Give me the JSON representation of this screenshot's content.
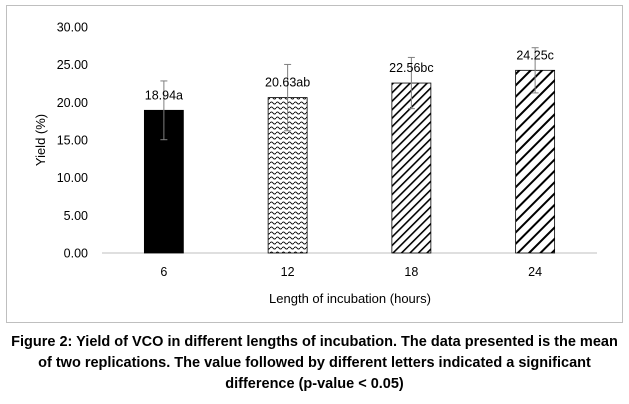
{
  "chart_data": {
    "type": "bar",
    "categories": [
      "6",
      "12",
      "18",
      "24"
    ],
    "values": [
      18.94,
      20.63,
      22.56,
      24.25
    ],
    "error": [
      3.9,
      4.4,
      3.4,
      3.0
    ],
    "data_labels": [
      "18.94a",
      "20.63ab",
      "22.56bc",
      "24.25c"
    ],
    "bar_patterns": [
      "solid",
      "wave",
      "dense-diagonal",
      "wide-diagonal"
    ],
    "xlabel": "Length of incubation (hours)",
    "ylabel": "Yield (%)",
    "ylim": [
      0,
      30
    ],
    "yticks": [
      "0.00",
      "5.00",
      "10.00",
      "15.00",
      "20.00",
      "25.00",
      "30.00"
    ],
    "grid": false,
    "legend": "none"
  },
  "caption": "Figure 2: Yield of VCO in different lengths of incubation. The data presented is the mean of two replications. The value followed by different letters indicated a significant difference (p-value < 0.05)"
}
